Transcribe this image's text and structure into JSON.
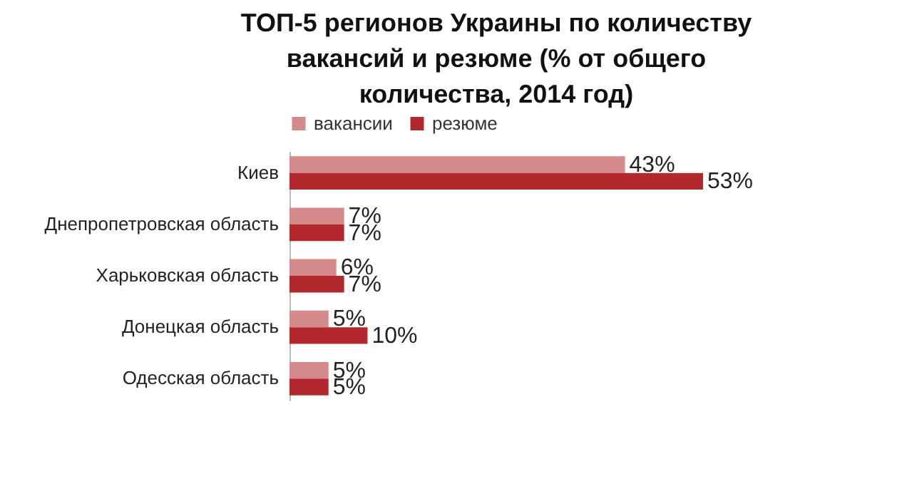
{
  "chart_data": {
    "type": "bar",
    "orientation": "horizontal",
    "title": "ТОП-5 регионов Украины по количеству вакансий и резюме (% от общего количества, 2014 год)",
    "categories": [
      "Киев",
      "Днепропетровская область",
      "Харьковская область",
      "Донецкая область",
      "Одесская область"
    ],
    "series": [
      {
        "name": "вакансии",
        "color": "#d4898a",
        "values": [
          43,
          7,
          6,
          5,
          5
        ],
        "value_labels": [
          "43%",
          "7%",
          "6%",
          "5%",
          "5%"
        ]
      },
      {
        "name": "резюме",
        "color": "#b3282c",
        "values": [
          53,
          7,
          7,
          10,
          5
        ],
        "value_labels": [
          "53%",
          "7%",
          "7%",
          "10%",
          "5%"
        ]
      }
    ],
    "legend": "top"
  }
}
